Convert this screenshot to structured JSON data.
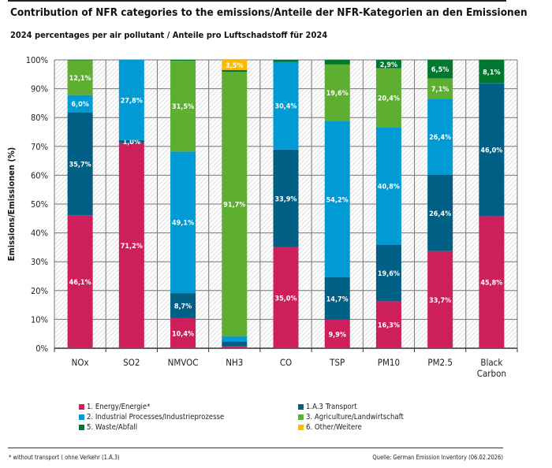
{
  "chart_data": {
    "type": "bar",
    "stacked": true,
    "title": "Contribution of NFR categories to the emissions/Anteile der NFR-Kategorien an den Emissionen",
    "subtitle": "2024 percentages per air pollutant / Anteile pro Luftschadstoff für 2024",
    "ylabel": "Emissions/Emissionen (%)",
    "xlabel": "",
    "ylim": [
      0,
      100
    ],
    "yticks": [
      "0%",
      "10%",
      "20%",
      "30%",
      "40%",
      "50%",
      "60%",
      "70%",
      "80%",
      "90%",
      "100%"
    ],
    "grid": true,
    "legend_position": "bottom",
    "categories": [
      "NOx",
      "SO2",
      "NMVOC",
      "NH3",
      "CO",
      "TSP",
      "PM10",
      "PM2.5",
      "Black Carbon"
    ],
    "series": [
      {
        "name": "1. Energy/Energie*",
        "color": "#cc1f5c",
        "values": [
          46.1,
          71.2,
          10.4,
          0.6,
          35.0,
          9.9,
          16.3,
          33.7,
          45.8
        ],
        "labels": [
          "46,1%",
          "71,2%",
          "10,4%",
          null,
          "35,0%",
          "9,9%",
          "16,3%",
          "33,7%",
          "45,8%"
        ]
      },
      {
        "name": "1.A.3 Transport",
        "color": "#005f85",
        "values": [
          35.7,
          1.0,
          8.7,
          1.8,
          33.9,
          14.7,
          19.6,
          26.4,
          46.0
        ],
        "labels": [
          "35,7%",
          "1,0%",
          "8,7%",
          null,
          "33,9%",
          "14,7%",
          "19,6%",
          "26,4%",
          "46,0%"
        ]
      },
      {
        "name": "2. Industrial Processes/Industrieprozesse",
        "color": "#009bd5",
        "values": [
          6.0,
          27.8,
          49.1,
          1.8,
          30.4,
          54.2,
          40.8,
          26.4,
          0.1
        ],
        "labels": [
          "6,0%",
          "27,8%",
          "49,1%",
          null,
          "30,4%",
          "54,2%",
          "40,8%",
          "26,4%",
          null
        ]
      },
      {
        "name": "3. Agriculture/Landwirtschaft",
        "color": "#5eae32",
        "values": [
          12.1,
          0,
          31.5,
          91.7,
          0,
          19.6,
          20.4,
          7.1,
          0
        ],
        "labels": [
          "12,1%",
          null,
          "31,5%",
          "91,7%",
          null,
          "19,6%",
          "20,4%",
          "7,1%",
          null
        ]
      },
      {
        "name": "5. Waste/Abfall",
        "color": "#00772e",
        "values": [
          0.1,
          0,
          0.3,
          0.6,
          0.7,
          1.6,
          2.9,
          6.5,
          8.1
        ],
        "labels": [
          null,
          null,
          null,
          null,
          null,
          null,
          "2,9%",
          "6,5%",
          "8,1%"
        ]
      },
      {
        "name": "6. Other/Weitere",
        "color": "#fbb900",
        "values": [
          0,
          0,
          0,
          3.5,
          0,
          0,
          0,
          0,
          0
        ],
        "labels": [
          null,
          null,
          null,
          "3,5%",
          null,
          null,
          null,
          null,
          null
        ]
      }
    ]
  },
  "footer": {
    "note": "* without transport ( ohne Verkehr (1.A.3)",
    "source": "Quelle: German Emission Inventory (06.02.2026)"
  }
}
